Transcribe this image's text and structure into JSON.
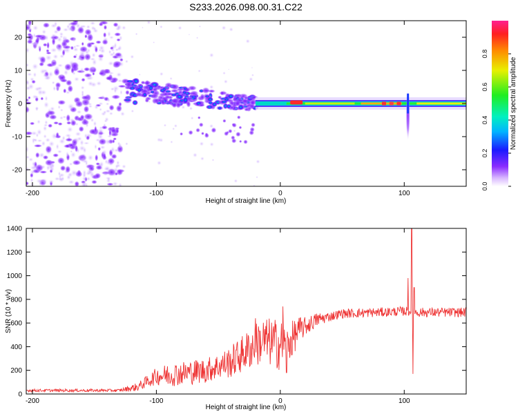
{
  "figure_title": "S233.2026.098.00.31.C22",
  "chart_data": [
    {
      "type": "heatmap",
      "title": "S233.2026.098.00.31.C22",
      "xlabel": "Height of straight line (km)",
      "ylabel": "Frequency (Hz)",
      "xlim": [
        -205,
        150
      ],
      "ylim": [
        -25,
        25
      ],
      "xticks": [
        -200,
        -100,
        0,
        100
      ],
      "yticks": [
        -20,
        -10,
        0,
        10,
        20
      ],
      "colorbar": {
        "label": "Normalized spectral amplitude",
        "range": [
          0,
          1
        ],
        "ticks": [
          0.0,
          0.2,
          0.4,
          0.6,
          0.8
        ]
      },
      "features": [
        {
          "name": "noise region",
          "x_range": [
            -205,
            -128
          ],
          "freq_range": [
            -25,
            25
          ],
          "amplitude": 0.05
        },
        {
          "name": "weak signal cluster",
          "x_range": [
            -128,
            -20
          ],
          "freq_center": [
            4,
            0
          ],
          "amplitude": 0.15
        },
        {
          "name": "signal line",
          "x_range": [
            -20,
            150
          ],
          "freq": 0,
          "amplitude": 0.6
        },
        {
          "name": "strong core",
          "x_range": [
            8,
            18
          ],
          "freq": 0.3,
          "amplitude": 1.0
        },
        {
          "name": "disturbance at",
          "x": 103,
          "freq_range": [
            -11,
            4
          ],
          "amplitude": 0.3
        }
      ]
    },
    {
      "type": "line",
      "xlabel": "Height of straight line (km)",
      "ylabel": "SNR (10 * v/v)",
      "xlim": [
        -205,
        150
      ],
      "ylim": [
        0,
        1400
      ],
      "xticks": [
        -200,
        -100,
        0,
        100
      ],
      "yticks": [
        0,
        200,
        400,
        600,
        800,
        1000,
        1200,
        1400
      ],
      "series": [
        {
          "name": "SNR",
          "color": "#ee3333",
          "baseline": [
            [
              -205,
              30
            ],
            [
              -130,
              30
            ],
            [
              -115,
              60
            ],
            [
              -100,
              150
            ],
            [
              -60,
              200
            ],
            [
              -40,
              270
            ],
            [
              -25,
              380
            ],
            [
              -15,
              450
            ],
            [
              -5,
              430
            ],
            [
              5,
              400
            ],
            [
              15,
              540
            ],
            [
              30,
              630
            ],
            [
              50,
              680
            ],
            [
              80,
              690
            ],
            [
              100,
              700
            ],
            [
              110,
              690
            ],
            [
              150,
              690
            ]
          ],
          "noise_amplitude": [
            [
              -205,
              12
            ],
            [
              -130,
              12
            ],
            [
              -110,
              45
            ],
            [
              -90,
              100
            ],
            [
              -50,
              110
            ],
            [
              -30,
              160
            ],
            [
              -15,
              200
            ],
            [
              0,
              220
            ],
            [
              20,
              80
            ],
            [
              40,
              40
            ],
            [
              150,
              40
            ]
          ],
          "spikes": [
            [
              -20,
              640
            ],
            [
              -17,
              530
            ],
            [
              2,
              740
            ],
            [
              5,
              180
            ],
            [
              103,
              980
            ],
            [
              106,
              1400
            ],
            [
              107,
              170
            ],
            [
              108,
              900
            ]
          ]
        }
      ]
    }
  ]
}
